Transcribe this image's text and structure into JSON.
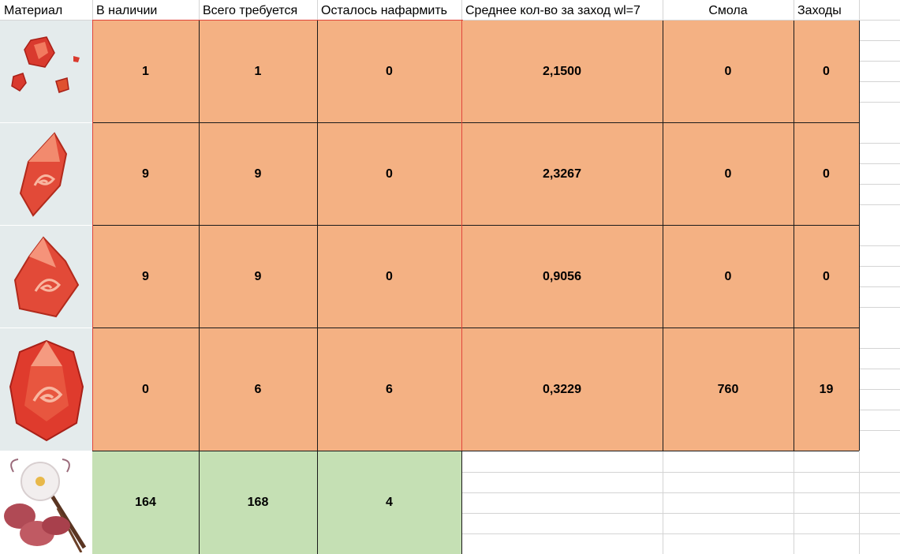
{
  "headers": {
    "material": "Материал",
    "in_stock": "В наличии",
    "total_required": "Всего требуется",
    "remaining": "Осталось нафармить",
    "avg_per_run": "Среднее кол-во за заход wl=7",
    "resin": "Смола",
    "runs": "Заходы"
  },
  "rows": [
    {
      "icon": "sliver-gem-icon",
      "in_stock": "1",
      "total": "1",
      "remaining": "0",
      "avg": "2,1500",
      "resin": "0",
      "runs": "0"
    },
    {
      "icon": "fragment-gem-icon",
      "in_stock": "9",
      "total": "9",
      "remaining": "0",
      "avg": "2,3267",
      "resin": "0",
      "runs": "0"
    },
    {
      "icon": "chunk-gem-icon",
      "in_stock": "9",
      "total": "9",
      "remaining": "0",
      "avg": "0,9056",
      "resin": "0",
      "runs": "0"
    },
    {
      "icon": "gemstone-icon",
      "in_stock": "0",
      "total": "6",
      "remaining": "6",
      "avg": "0,3229",
      "resin": "760",
      "runs": "19"
    }
  ],
  "flower_row": {
    "icon": "flower-specialty-icon",
    "in_stock": "164",
    "total": "168",
    "remaining": "4"
  },
  "colors": {
    "orange": "#f4b183",
    "green": "#c5e0b4",
    "grid": "#d4d4d4"
  }
}
